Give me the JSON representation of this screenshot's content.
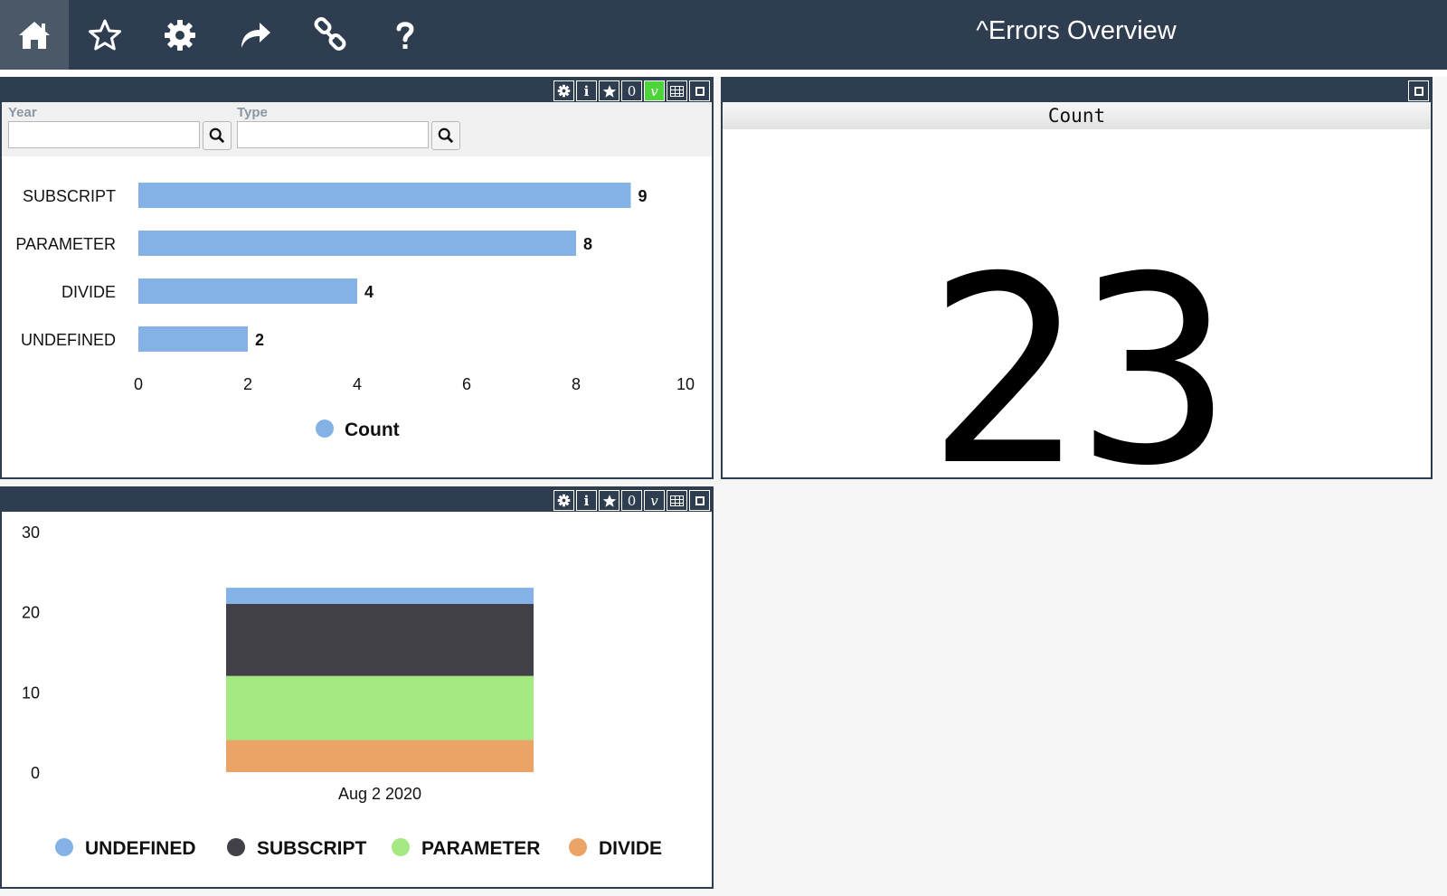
{
  "header": {
    "title": "^Errors Overview",
    "nav_icons": [
      "home-icon",
      "star-icon",
      "gear-icon",
      "share-icon",
      "link-icon",
      "help-icon"
    ]
  },
  "toolbar": {
    "zero_label": "0",
    "info_label": "i",
    "v_label": "v"
  },
  "filters": {
    "year_label": "Year",
    "type_label": "Type",
    "year_value": "",
    "type_value": ""
  },
  "kpi": {
    "header": "Count",
    "value": "23"
  },
  "colors": {
    "nav_bg": "#2e3d50",
    "bar_blue": "#85b2e6",
    "active_green": "#4cd43a",
    "undefined": "#85b2e6",
    "subscript": "#414046",
    "parameter": "#a4e882",
    "divide": "#eca466"
  },
  "chart_data": [
    {
      "type": "bar",
      "orientation": "horizontal",
      "categories": [
        "SUBSCRIPT",
        "PARAMETER",
        "DIVIDE",
        "UNDEFINED"
      ],
      "series": [
        {
          "name": "Count",
          "values": [
            9,
            8,
            4,
            2
          ]
        }
      ],
      "xlim": [
        0,
        10
      ],
      "xticks": [
        "0",
        "2",
        "4",
        "6",
        "8",
        "10"
      ],
      "data_labels": [
        "9",
        "8",
        "4",
        "2"
      ],
      "legend": "bottom"
    },
    {
      "type": "bar",
      "stacked": true,
      "categories": [
        "Aug 2 2020"
      ],
      "series": [
        {
          "name": "UNDEFINED",
          "values": [
            2
          ]
        },
        {
          "name": "SUBSCRIPT",
          "values": [
            9
          ]
        },
        {
          "name": "PARAMETER",
          "values": [
            8
          ]
        },
        {
          "name": "DIVIDE",
          "values": [
            4
          ]
        }
      ],
      "ylim": [
        0,
        30
      ],
      "yticks": [
        "0",
        "10",
        "20",
        "30"
      ],
      "legend": "bottom"
    }
  ]
}
